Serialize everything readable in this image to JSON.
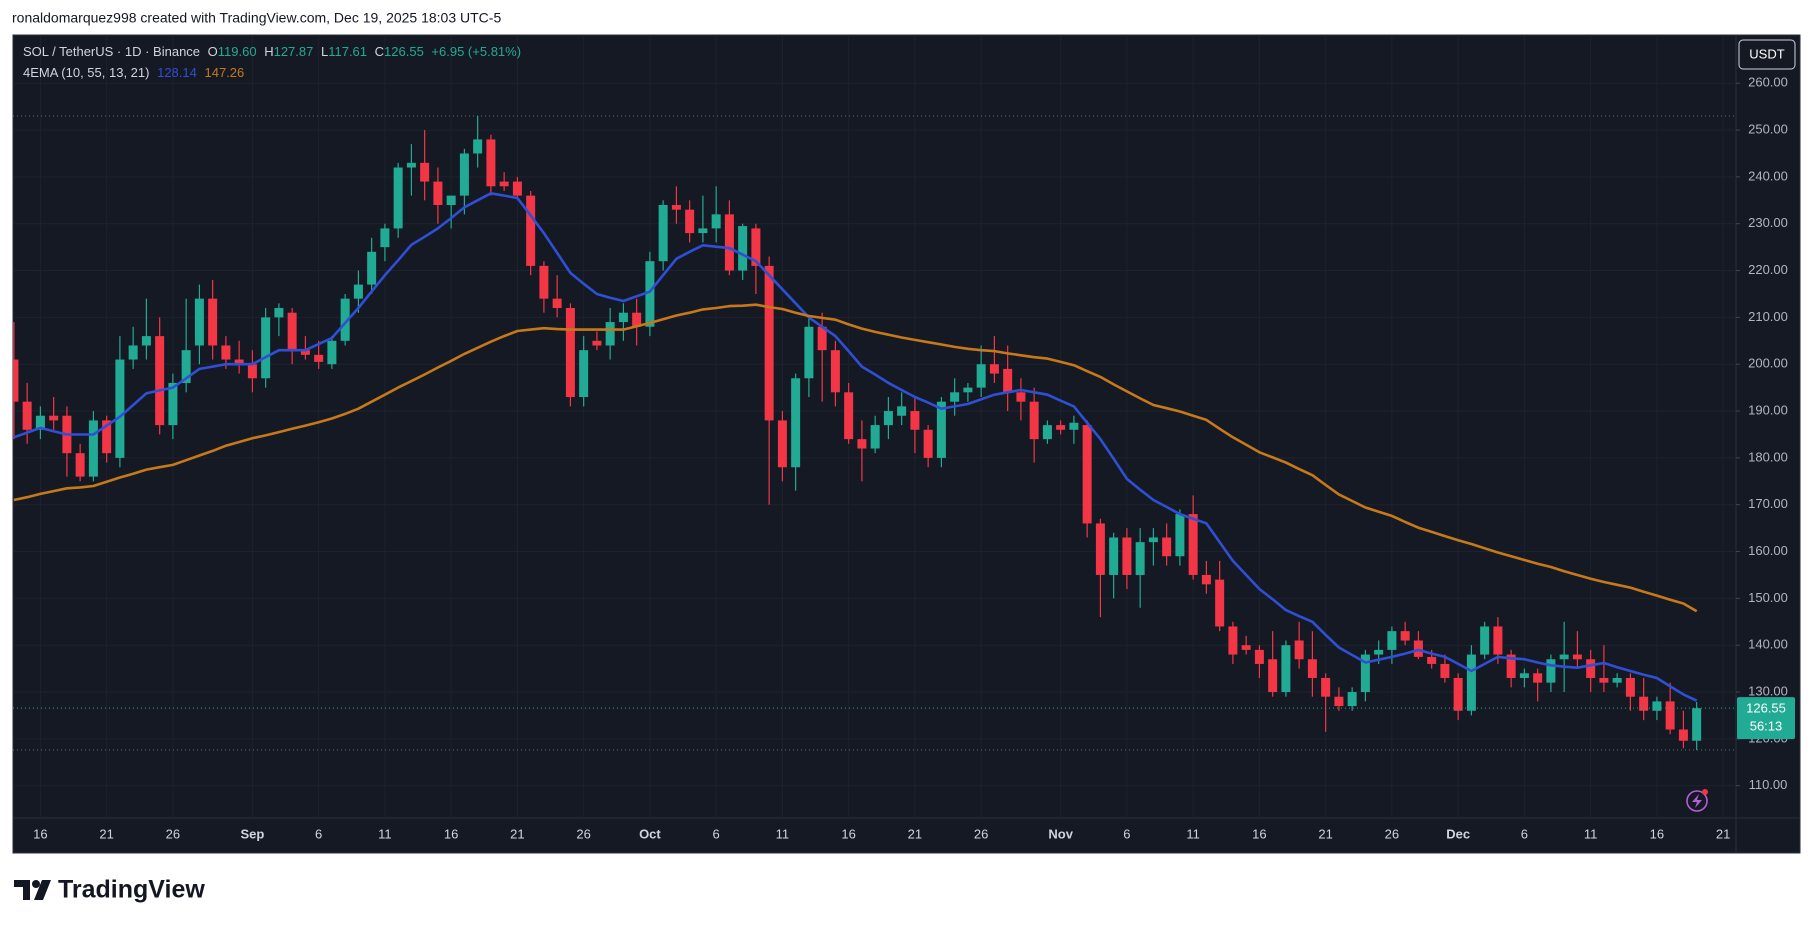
{
  "chart_data": {
    "type": "candlestick",
    "header_text": "ronaldomarquez998 created with TradingView.com, Dec 19, 2025 18:03 UTC-5",
    "legend": {
      "symbol": "SOL / TetherUS · 1D · Binance",
      "open_label": "O",
      "open": "119.60",
      "high_label": "H",
      "high": "127.87",
      "low_label": "L",
      "low": "117.61",
      "close_label": "C",
      "close": "126.55",
      "change": "+6.95 (+5.81%)"
    },
    "overlay_title": "4EMA (10, 55, 13, 21)",
    "currency": "USDT",
    "last_price_label": "126.55",
    "countdown": "56:13",
    "brand": "TradingView",
    "up_color": "#22ab94",
    "down_color": "#f23645",
    "grid": true,
    "categories": [
      null,
      null,
      "16",
      null,
      null,
      null,
      null,
      "21",
      null,
      null,
      null,
      null,
      "26",
      null,
      null,
      null,
      null,
      null,
      "Sep",
      null,
      null,
      null,
      null,
      "6",
      null,
      null,
      null,
      null,
      "11",
      null,
      null,
      null,
      null,
      "16",
      null,
      null,
      null,
      null,
      "21",
      null,
      null,
      null,
      null,
      "26",
      null,
      null,
      null,
      null,
      "Oct",
      null,
      null,
      null,
      null,
      "6",
      null,
      null,
      null,
      null,
      "11",
      null,
      null,
      null,
      null,
      "16",
      null,
      null,
      null,
      null,
      "21",
      null,
      null,
      null,
      null,
      "26",
      null,
      null,
      null,
      null,
      null,
      "Nov",
      null,
      null,
      null,
      null,
      "6",
      null,
      null,
      null,
      null,
      "11",
      null,
      null,
      null,
      null,
      "16",
      null,
      null,
      null,
      null,
      "21",
      null,
      null,
      null,
      null,
      "26",
      null,
      null,
      null,
      null,
      "Dec",
      null,
      null,
      null,
      null,
      "6",
      null,
      null,
      null,
      null,
      "11",
      null,
      null,
      null,
      null,
      "16",
      null,
      null,
      null,
      null,
      "21"
    ],
    "ohlc": {
      "open": [
        201,
        192,
        186,
        189,
        189,
        181,
        176,
        188,
        180,
        201,
        204,
        206,
        187,
        196,
        204,
        214,
        204,
        201,
        200,
        197,
        210,
        211,
        203,
        202,
        200,
        205,
        214,
        217,
        225,
        229,
        242,
        243,
        239,
        234,
        236,
        245,
        248,
        239,
        239,
        236,
        221,
        214,
        212,
        193,
        205,
        204,
        209,
        211,
        208,
        222,
        234,
        233,
        228,
        229,
        232,
        220,
        229,
        221,
        188,
        178,
        197,
        208,
        203,
        194,
        184,
        182,
        187,
        189,
        190,
        186,
        180,
        192,
        194,
        195,
        200,
        199,
        194,
        192,
        184,
        187,
        186,
        187,
        166,
        155,
        163,
        155,
        162,
        163,
        159,
        168,
        155,
        154,
        144,
        140,
        139,
        137,
        130,
        141,
        137,
        133,
        129,
        127,
        130,
        138,
        139,
        143,
        141,
        137.5,
        136,
        133,
        126,
        138,
        144,
        138,
        133,
        134,
        132,
        137,
        138,
        137,
        133,
        132,
        133,
        129,
        126,
        128,
        122,
        119.6,
        null,
        null
      ],
      "high": [
        209,
        196,
        191,
        193,
        191,
        183,
        190,
        189,
        206,
        208,
        214,
        210,
        198,
        214,
        217,
        218,
        206,
        205,
        203,
        212,
        213,
        212,
        206,
        205,
        206,
        215,
        220,
        227,
        230,
        243,
        247,
        250,
        242,
        236,
        246,
        253,
        249,
        241,
        240,
        237,
        222,
        219,
        213,
        206,
        207,
        212,
        213,
        214,
        224,
        235,
        238,
        235,
        236,
        238,
        235,
        230,
        230,
        223,
        190,
        198,
        210,
        211,
        205,
        196,
        188,
        189,
        193,
        194,
        193,
        187,
        193,
        197,
        196,
        204,
        206,
        204,
        197,
        195,
        188,
        188,
        189,
        188,
        167,
        164,
        165,
        165,
        165,
        166,
        169,
        172,
        158,
        158,
        145,
        142,
        140,
        143,
        141,
        145,
        143,
        134,
        131,
        131,
        139,
        141,
        144,
        145,
        143,
        139,
        138,
        134,
        140,
        145,
        146,
        139,
        135,
        135,
        138,
        145,
        143,
        139,
        140,
        134,
        134,
        133,
        129,
        132,
        126,
        127.87,
        null,
        null
      ],
      "low": [
        184,
        183,
        184,
        186,
        176,
        175,
        175,
        179,
        178,
        199,
        201,
        185,
        184,
        194,
        200,
        201,
        199,
        198,
        194,
        195,
        206,
        200,
        201,
        199,
        199,
        204,
        211,
        215,
        222,
        227,
        236,
        235,
        230,
        229,
        232,
        242,
        236,
        237,
        235,
        219,
        211,
        210,
        191,
        191,
        203,
        201,
        205,
        204,
        206,
        220,
        230,
        226,
        226,
        226,
        219,
        218,
        215,
        170,
        175,
        173,
        193,
        192,
        191,
        183,
        175,
        181,
        184,
        187,
        181,
        178,
        178,
        189,
        192,
        193,
        196,
        190,
        188,
        179,
        183,
        185,
        183,
        163,
        146,
        150,
        152,
        148,
        157,
        157,
        157,
        154,
        151,
        143,
        136,
        138,
        133,
        129,
        129,
        135,
        129,
        121.5,
        126,
        126,
        128,
        136,
        136,
        140,
        137,
        135,
        132,
        124,
        125,
        137,
        136,
        131,
        131,
        128,
        130,
        130,
        135,
        130,
        130,
        131,
        126,
        124,
        124,
        121,
        118,
        117.61,
        null,
        null
      ],
      "close": [
        192,
        186,
        189,
        188,
        181,
        176,
        188,
        181,
        201,
        204,
        206,
        187,
        196,
        203,
        214,
        204,
        201,
        200,
        197,
        210,
        212,
        203,
        202,
        200.5,
        205,
        214,
        217,
        224,
        229,
        242,
        243,
        239,
        234,
        236,
        245,
        248,
        238,
        238,
        236,
        221,
        214,
        212,
        193,
        203,
        204,
        209,
        211,
        208,
        222,
        234,
        233,
        228,
        229,
        232,
        220,
        229.5,
        221,
        188,
        178,
        197,
        208,
        203,
        194,
        184,
        182,
        187,
        190,
        191,
        186,
        180,
        192,
        194,
        195,
        200,
        198,
        194,
        192,
        184,
        187,
        186,
        187.5,
        166,
        155,
        163,
        155,
        162,
        163,
        159,
        168,
        155,
        153,
        144,
        138,
        139,
        136,
        130,
        140,
        137,
        133,
        129,
        127,
        130,
        138,
        139,
        143,
        141,
        137.5,
        136,
        133,
        126,
        138,
        144,
        138,
        133,
        134,
        132,
        137,
        138,
        137,
        133,
        132,
        133,
        129,
        126,
        128,
        122,
        119.6,
        126.55,
        null,
        null
      ]
    },
    "overlays": [
      {
        "color": "#2f4fd6",
        "value_label": "128.14",
        "values": [
          184.4,
          185.4,
          186.4,
          185.7,
          185,
          185,
          185,
          186.9,
          188.8,
          191.3,
          193.8,
          194.4,
          195,
          197,
          199,
          199.5,
          200,
          200,
          200,
          201.5,
          203,
          203,
          203,
          204.3,
          205.6,
          208.8,
          212,
          215.5,
          219,
          222.2,
          225.5,
          227.2,
          229,
          231.2,
          233.5,
          235,
          236.5,
          236,
          235.5,
          231.8,
          228,
          223.8,
          219.5,
          217.2,
          215,
          214.2,
          213.5,
          214.5,
          215.5,
          219,
          222.5,
          224,
          225.4,
          225.1,
          224.8,
          223.4,
          222,
          219,
          216,
          213,
          210,
          208,
          206,
          202.8,
          199.5,
          197.8,
          196,
          194.5,
          193,
          191.8,
          190.5,
          191,
          191.5,
          192.5,
          193.5,
          194,
          194.5,
          194,
          193.5,
          192.2,
          191,
          187.5,
          184,
          179.8,
          175.5,
          173.2,
          171,
          169.5,
          168,
          167,
          166,
          162,
          158,
          155,
          152,
          149.8,
          147.5,
          146.2,
          145,
          142.2,
          139.5,
          137.9,
          136.3,
          136.9,
          137.5,
          138.2,
          139,
          138.2,
          137.5,
          136,
          134.5,
          136,
          137.5,
          137.2,
          137,
          136.3,
          135.7,
          135.4,
          135.2,
          135.7,
          136.2,
          135.3,
          134.5,
          133.7,
          133,
          131.2,
          129.5,
          128.14,
          null,
          null
        ]
      },
      {
        "color": "#c7791a",
        "value_label": "147.26",
        "values": [
          171,
          171.6,
          172.3,
          172.9,
          173.5,
          173.7,
          174,
          174.9,
          175.8,
          176.6,
          177.5,
          178,
          178.5,
          179.5,
          180.5,
          181.5,
          182.6,
          183.4,
          184.2,
          184.8,
          185.5,
          186.2,
          186.9,
          187.6,
          188.4,
          189.4,
          190.5,
          192,
          193.5,
          195,
          196.4,
          197.8,
          199.3,
          200.7,
          202.2,
          203.5,
          204.8,
          206,
          207.1,
          207.4,
          207.7,
          207.5,
          207.4,
          207.4,
          207.4,
          207.4,
          207.4,
          208.1,
          208.8,
          209.6,
          210.4,
          211,
          211.7,
          212,
          212.4,
          212.5,
          212.7,
          212.2,
          211.8,
          211,
          210.3,
          209.9,
          209.5,
          208.5,
          207.6,
          206.9,
          206.3,
          205.7,
          205.2,
          204.7,
          204.2,
          203.7,
          203.3,
          203,
          202.8,
          202.3,
          201.9,
          201.5,
          201.2,
          200.5,
          199.8,
          198.5,
          197.3,
          195.7,
          194.2,
          192.7,
          191.3,
          190.6,
          189.9,
          189,
          188.1,
          186.2,
          184.4,
          182.8,
          181.2,
          180.1,
          179,
          177.6,
          176.3,
          174.2,
          172.2,
          170.8,
          169.4,
          168.5,
          167.6,
          166.3,
          165.1,
          164.2,
          163.3,
          162.4,
          161.6,
          160.7,
          159.8,
          159,
          158.2,
          157.4,
          156.7,
          155.8,
          155,
          154.2,
          153.5,
          152.9,
          152.3,
          151.4,
          150.6,
          149.7,
          148.9,
          147.26,
          null,
          null
        ]
      }
    ],
    "ylim": [
      103.1,
      270.3
    ],
    "yticks": [
      {
        "value": 110,
        "label": "110.00"
      },
      {
        "value": 120,
        "label": "120.00"
      },
      {
        "value": 130,
        "label": "130.00"
      },
      {
        "value": 140,
        "label": "140.00"
      },
      {
        "value": 150,
        "label": "150.00"
      },
      {
        "value": 160,
        "label": "160.00"
      },
      {
        "value": 170,
        "label": "170.00"
      },
      {
        "value": 180,
        "label": "180.00"
      },
      {
        "value": 190,
        "label": "190.00"
      },
      {
        "value": 200,
        "label": "200.00"
      },
      {
        "value": 210,
        "label": "210.00"
      },
      {
        "value": 220,
        "label": "220.00"
      },
      {
        "value": 230,
        "label": "230.00"
      },
      {
        "value": 240,
        "label": "240.00"
      },
      {
        "value": 250,
        "label": "250.00"
      },
      {
        "value": 260,
        "label": "260.00"
      }
    ]
  }
}
